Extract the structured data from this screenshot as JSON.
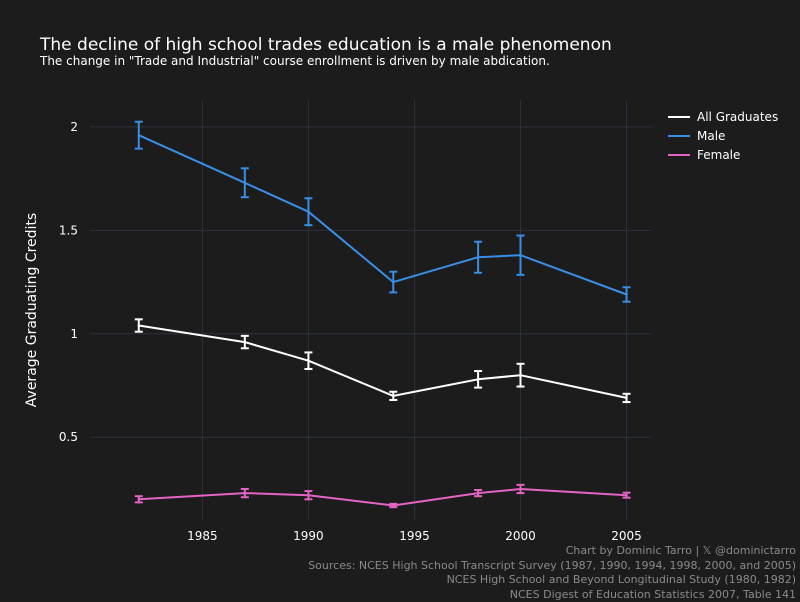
{
  "header": {
    "title": "The decline of high school trades education is a male phenomenon",
    "subtitle": "The change in \"Trade and Industrial\" course enrollment is driven by male abdication."
  },
  "footer": {
    "line1": "Chart by Dominic Tarro | 𝕏 @dominictarro",
    "line2": "Sources: NCES High School Transcript Survey (1987, 1990, 1994, 1998, 2000, and 2005)",
    "line3": "NCES High School and Beyond Longitudinal Study (1980, 1982)",
    "line4": "NCES Digest of Education Statistics 2007, Table 141"
  },
  "colors": {
    "background": "#1c1c1c",
    "grid": "#2c3140",
    "all_graduates": "#ffffff",
    "male": "#3a8ee6",
    "female": "#e463c4"
  },
  "chart_data": {
    "type": "line",
    "title": "The decline of high school trades education is a male phenomenon",
    "subtitle": "The change in \"Trade and Industrial\" course enrollment is driven by male abdication.",
    "xlabel": "",
    "ylabel": "Average Graduating Credits",
    "x": [
      1982,
      1987,
      1990,
      1994,
      1998,
      2000,
      2005
    ],
    "xlim": [
      1979.7,
      2006.2
    ],
    "ylim": [
      0.1,
      2.13
    ],
    "xticks": [
      "1985",
      "1990",
      "1995",
      "2000",
      "2005"
    ],
    "yticks": [
      "0.5",
      "1",
      "1.5",
      "2"
    ],
    "grid": true,
    "legend_position": "top-right",
    "series": [
      {
        "name": "All Graduates",
        "color": "#ffffff",
        "values": [
          1.04,
          0.96,
          0.87,
          0.7,
          0.78,
          0.8,
          0.69
        ],
        "error": [
          0.03,
          0.03,
          0.04,
          0.02,
          0.04,
          0.055,
          0.02
        ]
      },
      {
        "name": "Male",
        "color": "#3a8ee6",
        "values": [
          1.96,
          1.73,
          1.59,
          1.25,
          1.37,
          1.38,
          1.19
        ],
        "error": [
          0.065,
          0.07,
          0.065,
          0.05,
          0.075,
          0.095,
          0.035
        ]
      },
      {
        "name": "Female",
        "color": "#e463c4",
        "values": [
          0.2,
          0.23,
          0.22,
          0.17,
          0.23,
          0.25,
          0.22
        ],
        "error": [
          0.015,
          0.02,
          0.02,
          0.008,
          0.015,
          0.02,
          0.012
        ]
      }
    ]
  }
}
